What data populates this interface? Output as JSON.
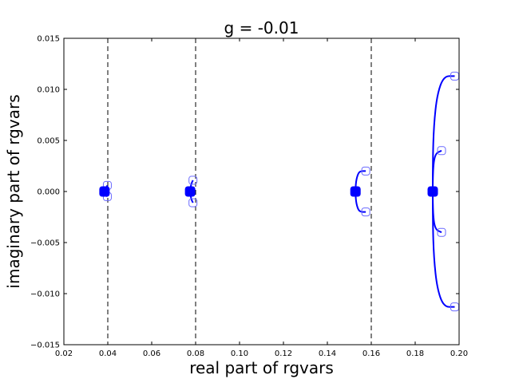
{
  "chart_data": {
    "type": "line",
    "title": "g = -0.01",
    "xlabel": "real part of rgvars",
    "ylabel": "imaginary part of rgvars",
    "xlim": [
      0.02,
      0.2
    ],
    "ylim": [
      -0.015,
      0.015
    ],
    "xticks": [
      "0.02",
      "0.04",
      "0.06",
      "0.08",
      "0.10",
      "0.12",
      "0.14",
      "0.16",
      "0.18",
      "0.20"
    ],
    "yticks": [
      "−0.015",
      "−0.010",
      "−0.005",
      "0.000",
      "0.005",
      "0.010",
      "0.015"
    ],
    "xtick_values": [
      0.02,
      0.04,
      0.06,
      0.08,
      0.1,
      0.12,
      0.14,
      0.16,
      0.18,
      0.2
    ],
    "ytick_values": [
      -0.015,
      -0.01,
      -0.005,
      0.0,
      0.005,
      0.01,
      0.015
    ],
    "grid": false,
    "line_color": "#0000ff",
    "start_marker_color": "#0000ff",
    "end_marker_color": "#6a6aff",
    "reference_lines": [
      0.04,
      0.08,
      0.16
    ],
    "series": [
      {
        "points": [
          [
            0.0385,
            0.0
          ],
          [
            0.0388,
            0.0001
          ],
          [
            0.0392,
            0.0003
          ],
          [
            0.0398,
            0.0006
          ]
        ],
        "start": [
          0.0385,
          0.0
        ],
        "end": [
          0.0398,
          0.0006
        ]
      },
      {
        "points": [
          [
            0.0385,
            0.0
          ],
          [
            0.0388,
            -0.0001
          ],
          [
            0.0392,
            -0.0003
          ],
          [
            0.0398,
            -0.0005
          ]
        ],
        "start": [
          0.0385,
          0.0
        ],
        "end": [
          0.0398,
          -0.0005
        ]
      },
      {
        "points": [
          [
            0.0775,
            0.0
          ],
          [
            0.0777,
            0.0004
          ],
          [
            0.0781,
            0.0008
          ],
          [
            0.0788,
            0.0011
          ]
        ],
        "start": [
          0.0775,
          0.0
        ],
        "end": [
          0.0788,
          0.0011
        ]
      },
      {
        "points": [
          [
            0.0775,
            0.0
          ],
          [
            0.0777,
            -0.0004
          ],
          [
            0.0781,
            -0.0008
          ],
          [
            0.0788,
            -0.0011
          ]
        ],
        "start": [
          0.0775,
          0.0
        ],
        "end": [
          0.0788,
          -0.0011
        ]
      },
      {
        "points": [
          [
            0.1528,
            0.0
          ],
          [
            0.1529,
            0.0008
          ],
          [
            0.1537,
            0.0016
          ],
          [
            0.1548,
            0.002
          ],
          [
            0.1575,
            0.002
          ]
        ],
        "start": [
          0.1528,
          0.0
        ],
        "end": [
          0.1575,
          0.002
        ]
      },
      {
        "points": [
          [
            0.1528,
            0.0
          ],
          [
            0.1529,
            -0.0008
          ],
          [
            0.1537,
            -0.0016
          ],
          [
            0.1548,
            -0.002
          ],
          [
            0.1575,
            -0.002
          ]
        ],
        "start": [
          0.1528,
          0.0
        ],
        "end": [
          0.1575,
          -0.002
        ]
      },
      {
        "points": [
          [
            0.188,
            0.0
          ],
          [
            0.188,
            0.002
          ],
          [
            0.189,
            0.0037
          ],
          [
            0.192,
            0.004
          ]
        ],
        "start": [
          0.188,
          0.0
        ],
        "end": [
          0.192,
          0.004
        ]
      },
      {
        "points": [
          [
            0.188,
            0.0
          ],
          [
            0.188,
            -0.002
          ],
          [
            0.189,
            -0.0037
          ],
          [
            0.192,
            -0.004
          ]
        ],
        "start": [
          0.188,
          0.0
        ],
        "end": [
          0.192,
          -0.004
        ]
      },
      {
        "points": [
          [
            0.188,
            0.0
          ],
          [
            0.188,
            0.003
          ],
          [
            0.1885,
            0.0065
          ],
          [
            0.19,
            0.0095
          ],
          [
            0.193,
            0.0113
          ],
          [
            0.198,
            0.0113
          ]
        ],
        "start": [
          0.188,
          0.0
        ],
        "end": [
          0.198,
          0.0113
        ]
      },
      {
        "points": [
          [
            0.188,
            0.0
          ],
          [
            0.188,
            -0.003
          ],
          [
            0.1885,
            -0.0065
          ],
          [
            0.19,
            -0.0095
          ],
          [
            0.193,
            -0.0113
          ],
          [
            0.198,
            -0.0113
          ]
        ],
        "start": [
          0.188,
          0.0
        ],
        "end": [
          0.198,
          -0.0113
        ]
      }
    ]
  }
}
